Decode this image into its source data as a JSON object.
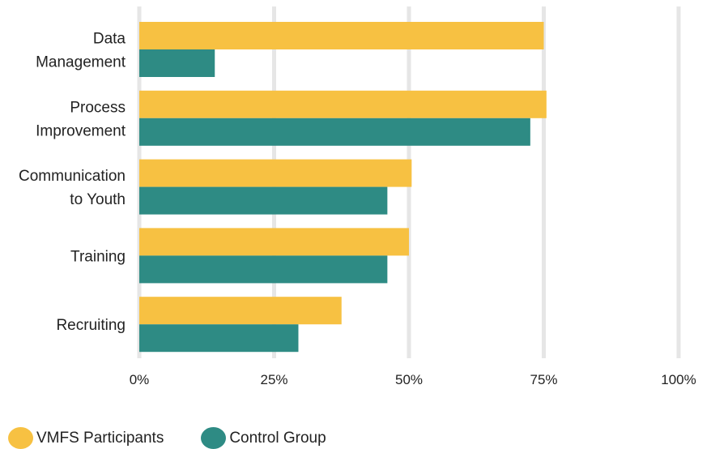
{
  "chart_data": {
    "type": "bar",
    "orientation": "horizontal",
    "categories": [
      [
        "Data",
        "Management"
      ],
      [
        "Process",
        "Improvement"
      ],
      [
        "Communication",
        "to Youth"
      ],
      [
        "Training"
      ],
      [
        "Recruiting"
      ]
    ],
    "series": [
      {
        "name": "VMFS Participants",
        "color": "#F7C142",
        "values": [
          75,
          75.5,
          50.5,
          50,
          37.5
        ]
      },
      {
        "name": "Control Group",
        "color": "#2E8B84",
        "values": [
          14,
          72.5,
          46,
          46,
          29.5
        ]
      }
    ],
    "xlim": [
      0,
      100
    ],
    "xticks": [
      0,
      25,
      50,
      75,
      100
    ],
    "xtick_labels": [
      "0%",
      "25%",
      "50%",
      "75%",
      "100%"
    ],
    "grid": "vertical",
    "grid_color": "#E6E6E6",
    "legend_position": "bottom-left",
    "title": "",
    "xlabel": "",
    "ylabel": ""
  },
  "legend": {
    "items": [
      {
        "label": "VMFS Participants",
        "color": "#F7C142"
      },
      {
        "label": "Control Group",
        "color": "#2E8B84"
      }
    ]
  }
}
